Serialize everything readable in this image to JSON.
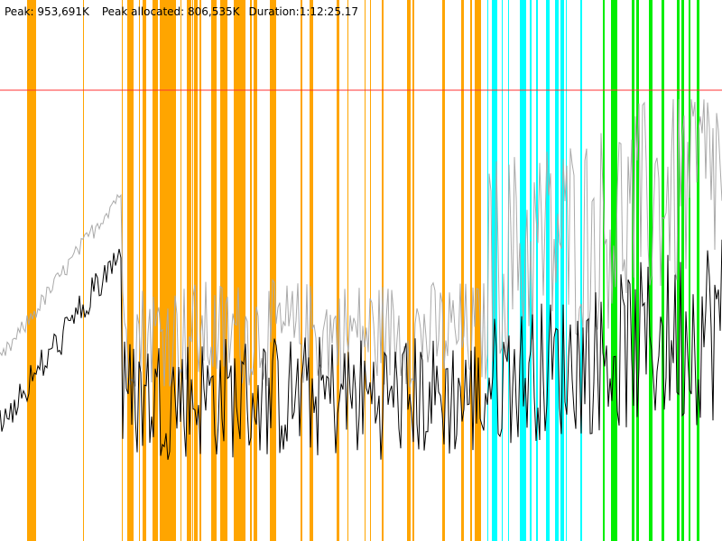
{
  "header": {
    "peak": "Peak: 953,691K",
    "peak_allocated": "Peak allocated: 806,535K",
    "duration": "Duration:1:12:25.17"
  }
}
